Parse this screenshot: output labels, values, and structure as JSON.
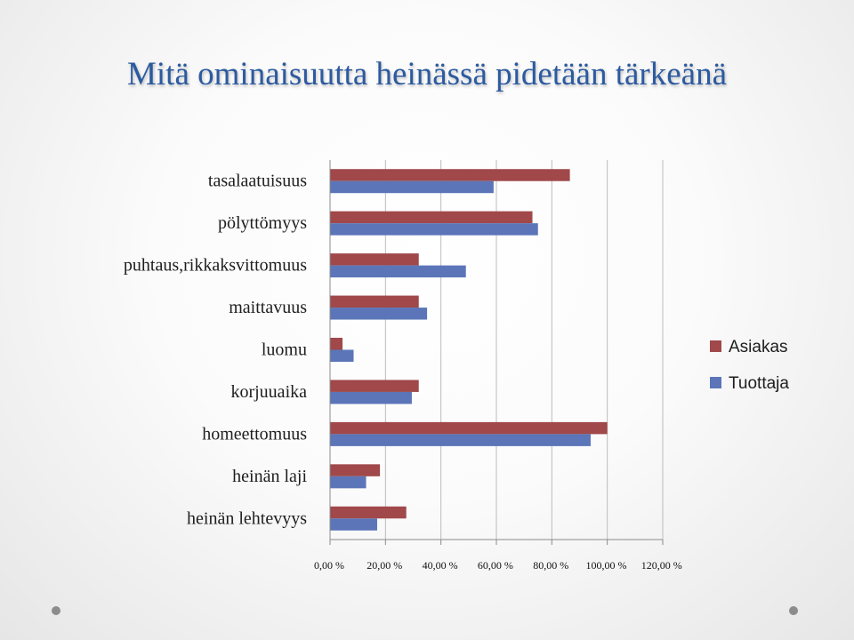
{
  "slide": {
    "title": "Mitä ominaisuutta heinässä pidetään tärkeänä"
  },
  "chart_data": {
    "type": "bar",
    "orientation": "horizontal",
    "title": "",
    "categories": [
      "tasalaatuisuus",
      "pölyttömyys",
      "puhtaus,rikkaksvittomuus",
      "maittavuus",
      "luomu",
      "korjuuaika",
      "homeettomuus",
      "heinän laji",
      "heinän lehtevyys"
    ],
    "series": [
      {
        "name": "Asiakas",
        "color": "#a0484a",
        "values": [
          86.5,
          73,
          32,
          32,
          4.5,
          32,
          100,
          18,
          27.5
        ]
      },
      {
        "name": "Tuottaja",
        "color": "#5b75b8",
        "values": [
          59,
          75,
          49,
          35,
          8.5,
          29.5,
          94,
          13,
          17
        ]
      }
    ],
    "xlim": [
      0,
      120
    ],
    "xticks": [
      "0,00 %",
      "20,00 %",
      "40,00 %",
      "60,00 %",
      "80,00 %",
      "100,00 %",
      "120,00 %"
    ],
    "grid": true,
    "legend": "right"
  }
}
